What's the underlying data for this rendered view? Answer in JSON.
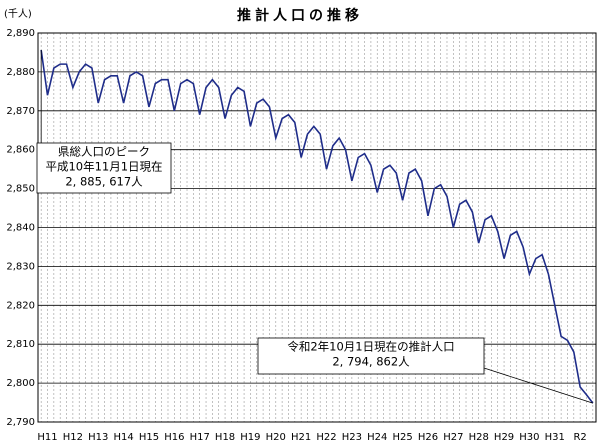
{
  "chart_data": {
    "type": "line",
    "title": "推計人口の推移",
    "y_axis_label": "(千人)",
    "categories": [
      null,
      "H11",
      null,
      null,
      null,
      "H12",
      null,
      null,
      null,
      "H13",
      null,
      null,
      null,
      "H14",
      null,
      null,
      null,
      "H15",
      null,
      null,
      null,
      "H16",
      null,
      null,
      null,
      "H17",
      null,
      null,
      null,
      "H18",
      null,
      null,
      null,
      "H19",
      null,
      null,
      null,
      "H20",
      null,
      null,
      null,
      "H21",
      null,
      null,
      null,
      "H22",
      null,
      null,
      null,
      "H23",
      null,
      null,
      null,
      "H24",
      null,
      null,
      null,
      "H25",
      null,
      null,
      null,
      "H26",
      null,
      null,
      null,
      "H27",
      null,
      null,
      null,
      "H28",
      null,
      null,
      null,
      "H29",
      null,
      null,
      null,
      "H30",
      null,
      null,
      null,
      "H31",
      null,
      null,
      null,
      "R2",
      null,
      null
    ],
    "series": [
      {
        "color": "#1f2d8a",
        "values": [
          2885.617,
          2874,
          2881,
          2882,
          2882,
          2876,
          2880,
          2882,
          2881,
          2872,
          2878,
          2879,
          2879,
          2872,
          2879,
          2880,
          2879,
          2871,
          2877,
          2878,
          2878,
          2870,
          2877,
          2878,
          2877,
          2869,
          2876,
          2878,
          2876,
          2868,
          2874,
          2876,
          2875,
          2866,
          2872,
          2873,
          2871,
          2863,
          2868,
          2869,
          2867,
          2858,
          2864,
          2866,
          2864,
          2855,
          2861,
          2863,
          2860,
          2852,
          2858,
          2859,
          2856,
          2849,
          2855,
          2856,
          2854,
          2847,
          2854,
          2855,
          2852,
          2843,
          2850,
          2851,
          2848,
          2840,
          2846,
          2847,
          2844,
          2836,
          2842,
          2843,
          2839,
          2832,
          2838,
          2839,
          2835,
          2828,
          2832,
          2833,
          2828,
          2820,
          2812,
          2811,
          2808,
          2799,
          2797,
          2794.862
        ]
      }
    ],
    "ylim": [
      2790,
      2890
    ],
    "yticks": [
      {
        "value": 2790,
        "label": "2,790"
      },
      {
        "value": 2800,
        "label": "2,800"
      },
      {
        "value": 2810,
        "label": "2,810"
      },
      {
        "value": 2820,
        "label": "2,820"
      },
      {
        "value": 2830,
        "label": "2,830"
      },
      {
        "value": 2840,
        "label": "2,840"
      },
      {
        "value": 2850,
        "label": "2,850"
      },
      {
        "value": 2860,
        "label": "2,860"
      },
      {
        "value": 2870,
        "label": "2,870"
      },
      {
        "value": 2880,
        "label": "2,880"
      },
      {
        "value": 2890,
        "label": "2,890"
      }
    ],
    "grid": true,
    "annotations": [
      {
        "lines": [
          "県総人口のピーク",
          "平成10年11月1日現在",
          "2, 885, 617人"
        ]
      },
      {
        "lines": [
          "令和2年10月1日現在の推計人口",
          "2, 794, 862人"
        ]
      }
    ]
  }
}
